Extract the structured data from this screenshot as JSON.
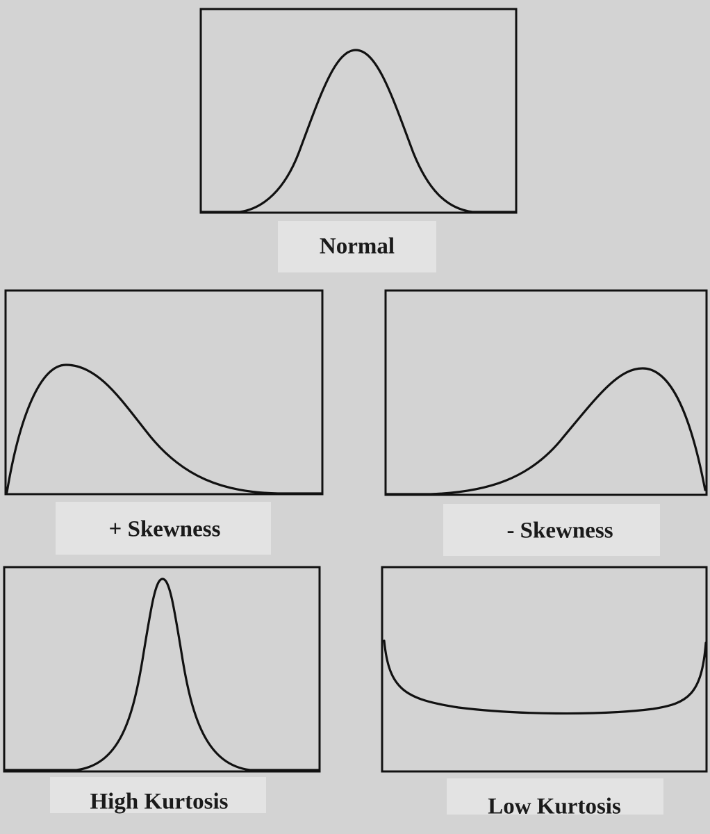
{
  "labels": {
    "normal": "Normal",
    "positive_skewness": "+ Skewness",
    "negative_skewness": "- Skewness",
    "high_kurtosis": "High Kurtosis",
    "low_kurtosis": "Low Kurtosis"
  }
}
